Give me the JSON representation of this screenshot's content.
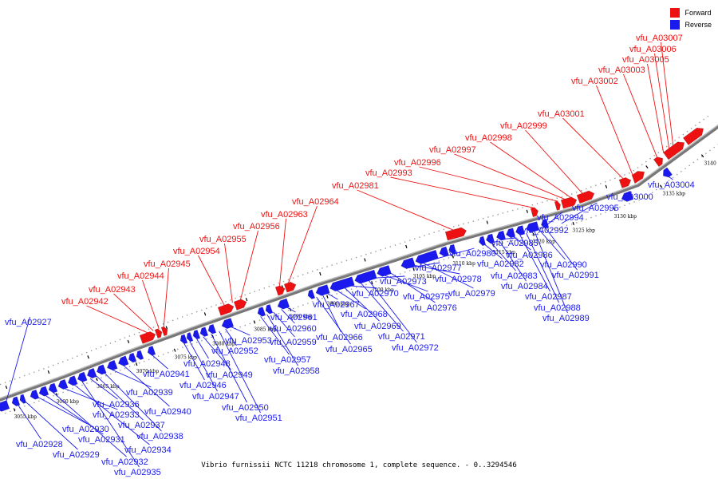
{
  "caption": "Vibrio furnissii NCTC 11218 chromosome 1, complete sequence. - 0..3294546",
  "colors": {
    "forward": "#ee1111",
    "reverse": "#1a1aee",
    "backbone": "#777777"
  },
  "legend": [
    {
      "label": "Forward",
      "color": "#ee1111"
    },
    {
      "label": "Reverse",
      "color": "#1a1aee"
    }
  ],
  "axis": {
    "unit": "kbp",
    "tick_labels": [
      "3055 kbp",
      "3060 kbp",
      "3065 kbp",
      "3070 kbp",
      "3075 kbp",
      "3080 kbp",
      "3085 kbp",
      "3090 kbp",
      "3095 kbp",
      "3100 kbp",
      "3105 kbp",
      "3110 kbp",
      "3115 kbp",
      "3120 kbp",
      "3125 kbp",
      "3130 kbp",
      "3135 kbp",
      "3140 kbp"
    ]
  },
  "forward_labels": [
    "vfu_A02942",
    "vfu_A02943",
    "vfu_A02944",
    "vfu_A02945",
    "vfu_A02954",
    "vfu_A02955",
    "vfu_A02956",
    "vfu_A02963",
    "vfu_A02964",
    "vfu_A02981",
    "vfu_A02993",
    "vfu_A02996",
    "vfu_A02997",
    "vfu_A02998",
    "vfu_A02999",
    "vfu_A03001",
    "vfu_A03002",
    "vfu_A03003",
    "vfu_A03005",
    "vfu_A03006",
    "vfu_A03007"
  ],
  "reverse_labels": [
    "vfu_A02927",
    "vfu_A02928",
    "vfu_A02929",
    "vfu_A02930",
    "vfu_A02931",
    "vfu_A02932",
    "vfu_A02933",
    "vfu_A02934",
    "vfu_A02935",
    "vfu_A02936",
    "vfu_A02937",
    "vfu_A02938",
    "vfu_A02939",
    "vfu_A02940",
    "vfu_A02941",
    "vfu_A02946",
    "vfu_A02947",
    "vfu_A02948",
    "vfu_A02949",
    "vfu_A02950",
    "vfu_A02951",
    "vfu_A02952",
    "vfu_A02953",
    "vfu_A02957",
    "vfu_A02958",
    "vfu_A02959",
    "vfu_A02960",
    "vfu_A02961",
    "vfu_A02965",
    "vfu_A02966",
    "vfu_A02967",
    "vfu_A02968",
    "vfu_A02969",
    "vfu_A02970",
    "vfu_A02971",
    "vfu_A02972",
    "vfu_A02973",
    "vfu_A02975",
    "vfu_A02976",
    "vfu_A02977",
    "vfu_A02978",
    "vfu_A02979",
    "vfu_A02980",
    "vfu_A02982",
    "vfu_A02983",
    "vfu_A02984",
    "vfu_A02985",
    "vfu_A02986",
    "vfu_A02987",
    "vfu_A02988",
    "vfu_A02989",
    "vfu_A02990",
    "vfu_A02991",
    "vfu_A02992",
    "vfu_A02994",
    "vfu_A02995",
    "vfu_A03000",
    "vfu_A03004"
  ]
}
